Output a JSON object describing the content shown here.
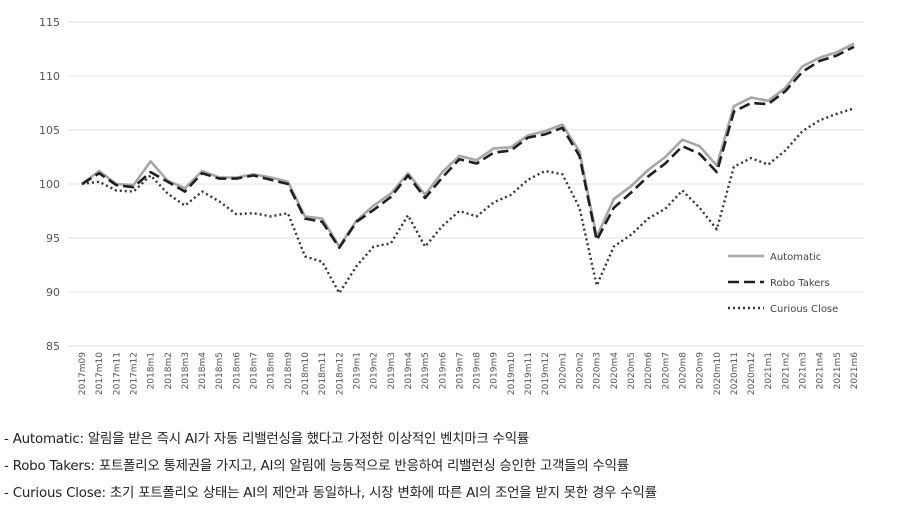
{
  "chart_data": {
    "type": "line",
    "ylim": [
      85,
      115
    ],
    "yticks": [
      85,
      90,
      95,
      100,
      105,
      110,
      115
    ],
    "grid": true,
    "legend_position": "bottom-right",
    "categories": [
      "2017m09",
      "2017m10",
      "2017m11",
      "2017m12",
      "2018m1",
      "2018m2",
      "2018m3",
      "2018m4",
      "2018m5",
      "2018m6",
      "2018m7",
      "2018m8",
      "2018m9",
      "2018m10",
      "2018m11",
      "2018m12",
      "2019m1",
      "2019m2",
      "2019m3",
      "2019m4",
      "2019m5",
      "2019m6",
      "2019m7",
      "2019m8",
      "2019m9",
      "2019m10",
      "2019m11",
      "2019m12",
      "2020m1",
      "2020m2",
      "2020m3",
      "2020m4",
      "2020m5",
      "2020m6",
      "2020m7",
      "2020m8",
      "2020m9",
      "2020m10",
      "2020m11",
      "2020m12",
      "2021m1",
      "2021m2",
      "2021m3",
      "2021m4",
      "2021m5",
      "2021m6"
    ],
    "series": [
      {
        "name": "Automatic",
        "color": "#a6a6a6",
        "style": "solid",
        "values": [
          100.0,
          101.2,
          100.0,
          99.9,
          102.1,
          100.3,
          99.6,
          101.2,
          100.6,
          100.6,
          100.9,
          100.6,
          100.2,
          97.0,
          96.8,
          94.2,
          96.6,
          98.0,
          99.1,
          101.0,
          99.0,
          101.1,
          102.6,
          102.2,
          103.3,
          103.4,
          104.5,
          104.9,
          105.5,
          103.0,
          95.1,
          98.6,
          99.8,
          101.3,
          102.5,
          104.1,
          103.5,
          101.7,
          107.2,
          108.0,
          107.7,
          108.9,
          110.9,
          111.7,
          112.2,
          113.0
        ]
      },
      {
        "name": "Robo Takers",
        "color": "#1f1f1f",
        "style": "dashed",
        "values": [
          100.0,
          101.0,
          99.9,
          99.7,
          101.1,
          100.2,
          99.3,
          101.0,
          100.5,
          100.5,
          100.8,
          100.4,
          100.0,
          96.8,
          96.5,
          94.1,
          96.5,
          97.6,
          98.8,
          100.8,
          98.7,
          100.6,
          102.3,
          101.9,
          102.9,
          103.1,
          104.3,
          104.6,
          105.2,
          102.6,
          94.8,
          97.8,
          99.2,
          100.7,
          101.9,
          103.5,
          102.8,
          101.1,
          106.7,
          107.5,
          107.4,
          108.6,
          110.4,
          111.4,
          111.9,
          112.7
        ]
      },
      {
        "name": "Curious Close",
        "color": "#333333",
        "style": "dotted",
        "values": [
          100.0,
          100.2,
          99.4,
          99.3,
          100.8,
          99.1,
          98.0,
          99.3,
          98.4,
          97.2,
          97.3,
          97.0,
          97.3,
          93.3,
          92.8,
          89.9,
          92.4,
          94.2,
          94.5,
          97.1,
          94.2,
          96.1,
          97.5,
          97.0,
          98.3,
          99.0,
          100.4,
          101.2,
          100.9,
          97.8,
          90.6,
          94.2,
          95.3,
          96.8,
          97.7,
          99.4,
          97.8,
          95.8,
          101.6,
          102.4,
          101.8,
          103.1,
          104.9,
          105.9,
          106.5,
          107.0
        ]
      }
    ]
  },
  "notes": [
    "- Automatic: 알림을 받은 즉시 AI가 자동 리밸런싱을 했다고 가정한 이상적인 벤치마크 수익률",
    "- Robo Takers: 포트폴리오 통제권을 가지고, AI의 알림에 능동적으로 반응하여 리밸런싱 승인한 고객들의 수익률",
    "- Curious Close: 초기 포트폴리오 상태는 AI의 제안과 동일하나, 시장 변화에 따른 AI의 조언을 받지 못한 경우 수익률"
  ]
}
